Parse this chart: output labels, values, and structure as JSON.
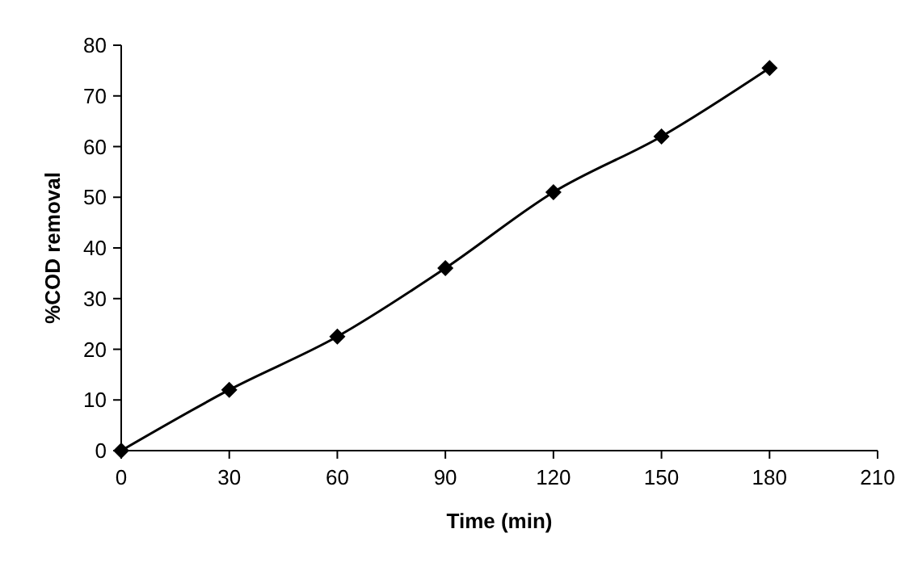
{
  "chart_data": {
    "type": "line",
    "xlabel": "Time (min)",
    "ylabel": "%COD removal",
    "x": [
      0,
      30,
      60,
      90,
      120,
      150,
      180
    ],
    "series": [
      {
        "color": "#000000",
        "values": [
          0,
          12,
          22.5,
          36,
          51,
          62,
          75.5
        ]
      }
    ],
    "xlim": [
      0,
      210
    ],
    "xticks": [
      0,
      30,
      60,
      90,
      120,
      150,
      180,
      210
    ],
    "ylim": [
      0,
      80
    ],
    "yticks": [
      0,
      10,
      20,
      30,
      40,
      50,
      60,
      70,
      80
    ],
    "marker": "diamond",
    "line_style": "solid",
    "grid": false
  }
}
